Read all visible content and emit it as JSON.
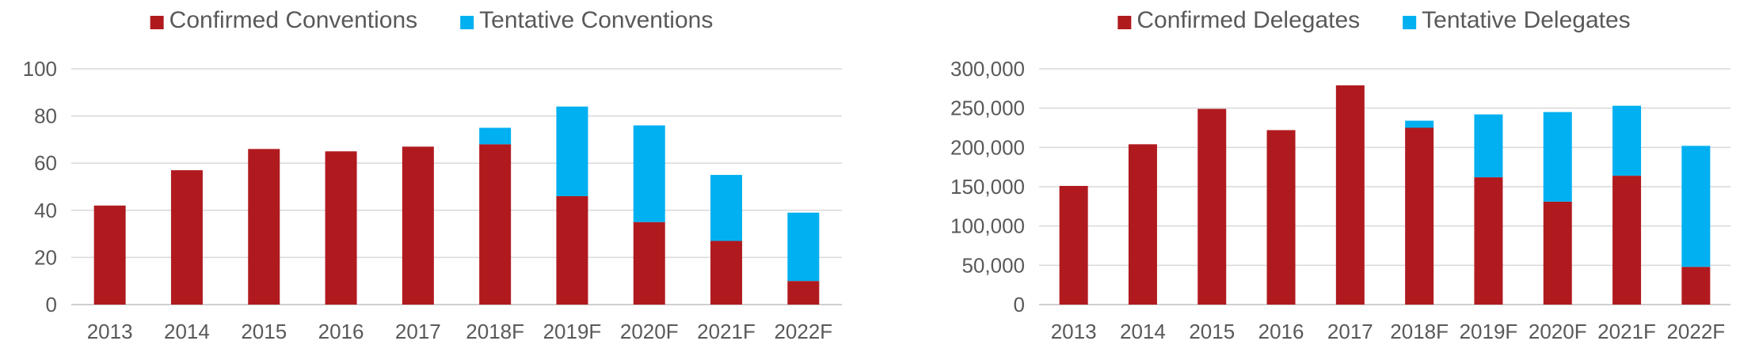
{
  "chart_data": [
    {
      "type": "bar",
      "stacked": true,
      "categories": [
        "2013",
        "2014",
        "2015",
        "2016",
        "2017",
        "2018F",
        "2019F",
        "2020F",
        "2021F",
        "2022F"
      ],
      "series": [
        {
          "name": "Confirmed Conventions",
          "color": "#b01a1e",
          "values": [
            42,
            57,
            66,
            65,
            67,
            68,
            46,
            35,
            27,
            10
          ]
        },
        {
          "name": "Tentative Conventions",
          "color": "#00b0f0",
          "values": [
            0,
            0,
            0,
            0,
            0,
            7,
            38,
            41,
            28,
            29
          ]
        }
      ],
      "ylim": [
        0,
        100
      ],
      "yticks": [
        0,
        20,
        40,
        60,
        80,
        100
      ],
      "ytick_labels": [
        "0",
        "20",
        "40",
        "60",
        "80",
        "100"
      ],
      "grid": true,
      "legend": "top-center",
      "title": "",
      "xlabel": "",
      "ylabel": ""
    },
    {
      "type": "bar",
      "stacked": true,
      "categories": [
        "2013",
        "2014",
        "2015",
        "2016",
        "2017",
        "2018F",
        "2019F",
        "2020F",
        "2021F",
        "2022F"
      ],
      "series": [
        {
          "name": "Confirmed Delegates",
          "color": "#b01a1e",
          "values": [
            151000,
            204000,
            249000,
            222000,
            279000,
            225000,
            162000,
            131000,
            164000,
            48000
          ]
        },
        {
          "name": "Tentative Delegates",
          "color": "#00b0f0",
          "values": [
            0,
            0,
            0,
            0,
            0,
            9000,
            80000,
            114000,
            89000,
            154000
          ]
        }
      ],
      "ylim": [
        0,
        300000
      ],
      "yticks": [
        0,
        50000,
        100000,
        150000,
        200000,
        250000,
        300000
      ],
      "ytick_labels": [
        "0",
        "50,000",
        "100,000",
        "150,000",
        "200,000",
        "250,000",
        "300,000"
      ],
      "grid": true,
      "legend": "top-center",
      "title": "",
      "xlabel": "",
      "ylabel": ""
    }
  ]
}
